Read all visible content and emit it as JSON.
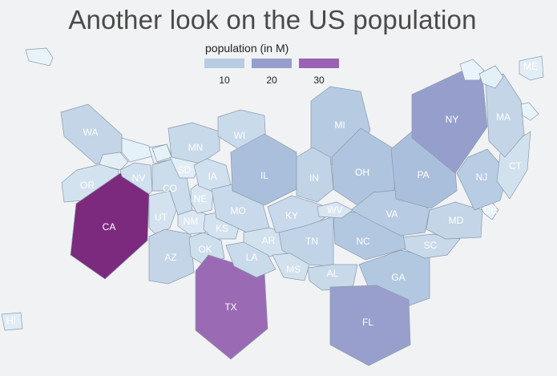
{
  "title": "Another look on the US population",
  "legend": {
    "title": "population (in M)",
    "items": [
      {
        "label": "10",
        "color": "#b7cce2"
      },
      {
        "label": "20",
        "color": "#969fcc"
      },
      {
        "label": "30",
        "color": "#9a62b3"
      }
    ]
  },
  "colors": {
    "background": "#f1f2f4",
    "border": "#8a9aab",
    "label": "#ffffff",
    "tiny_state_fill": "#e5f2f9"
  },
  "states": [
    {
      "abbr": "WA",
      "label": "WA",
      "color": "#c3d5e7"
    },
    {
      "abbr": "OR",
      "label": "OR",
      "color": "#d3e2ef"
    },
    {
      "abbr": "CA",
      "label": "CA",
      "color": "#7b2a7e"
    },
    {
      "abbr": "NV",
      "label": "NV",
      "color": "#cfe0ef"
    },
    {
      "abbr": "ID",
      "label": "",
      "color": "#e3eef7"
    },
    {
      "abbr": "MT",
      "label": "",
      "color": "#e5f1f8"
    },
    {
      "abbr": "WY",
      "label": "",
      "color": "#e8f3f9"
    },
    {
      "abbr": "UT",
      "label": "UT",
      "color": "#d4e2ef"
    },
    {
      "abbr": "AZ",
      "label": "AZ",
      "color": "#c3d5e7"
    },
    {
      "abbr": "CO",
      "label": "CO",
      "color": "#cbdcec"
    },
    {
      "abbr": "NM",
      "label": "NM",
      "color": "#dae6f2"
    },
    {
      "abbr": "SD",
      "label": "SD",
      "color": "#e2edf6"
    },
    {
      "abbr": "ND",
      "label": "",
      "color": "#e6f2f9"
    },
    {
      "abbr": "NE",
      "label": "NE",
      "color": "#d9e6f2"
    },
    {
      "abbr": "KS",
      "label": "KS",
      "color": "#d3e2ef"
    },
    {
      "abbr": "OK",
      "label": "OK",
      "color": "#cddeed"
    },
    {
      "abbr": "TX",
      "label": "TX",
      "color": "#9a6bb4"
    },
    {
      "abbr": "MN",
      "label": "MN",
      "color": "#c8d9ea"
    },
    {
      "abbr": "IA",
      "label": "IA",
      "color": "#d0e0ee"
    },
    {
      "abbr": "MO",
      "label": "MO",
      "color": "#c8d9eb"
    },
    {
      "abbr": "AR",
      "label": "AR",
      "color": "#d2e1ee"
    },
    {
      "abbr": "LA",
      "label": "LA",
      "color": "#c9daeb"
    },
    {
      "abbr": "WI",
      "label": "WI",
      "color": "#c9daeb"
    },
    {
      "abbr": "IL",
      "label": "IL",
      "color": "#a9bfdc"
    },
    {
      "abbr": "MI",
      "label": "MI",
      "color": "#b6cbe2"
    },
    {
      "abbr": "IN",
      "label": "IN",
      "color": "#c1d4e7"
    },
    {
      "abbr": "OH",
      "label": "OH",
      "color": "#afc5df"
    },
    {
      "abbr": "KY",
      "label": "KY",
      "color": "#c8d9eb"
    },
    {
      "abbr": "TN",
      "label": "TN",
      "color": "#c1d4e7"
    },
    {
      "abbr": "MS",
      "label": "MS",
      "color": "#d2e1ee"
    },
    {
      "abbr": "AL",
      "label": "AL",
      "color": "#c8d9ea"
    },
    {
      "abbr": "GA",
      "label": "GA",
      "color": "#b2c7e0"
    },
    {
      "abbr": "FL",
      "label": "FL",
      "color": "#999fcc"
    },
    {
      "abbr": "SC",
      "label": "SC",
      "color": "#c8d9ea"
    },
    {
      "abbr": "NC",
      "label": "NC",
      "color": "#b2c7e0"
    },
    {
      "abbr": "VA",
      "label": "VA",
      "color": "#b7cce3"
    },
    {
      "abbr": "WV",
      "label": "WV",
      "color": "#d9e6f2"
    },
    {
      "abbr": "MD",
      "label": "MD",
      "color": "#c3d5e7"
    },
    {
      "abbr": "DE",
      "label": "DE",
      "color": "#e8f3f9"
    },
    {
      "abbr": "NJ",
      "label": "NJ",
      "color": "#b8cce3"
    },
    {
      "abbr": "PA",
      "label": "PA",
      "color": "#a9bfdc"
    },
    {
      "abbr": "NY",
      "label": "NY",
      "color": "#969fcc"
    },
    {
      "abbr": "CT",
      "label": "CT",
      "color": "#d2e1ee"
    },
    {
      "abbr": "RI",
      "label": "",
      "color": "#e8f3f9"
    },
    {
      "abbr": "MA",
      "label": "MA",
      "color": "#c3d5e7"
    },
    {
      "abbr": "VT",
      "label": "",
      "color": "#e9f4fa"
    },
    {
      "abbr": "NH",
      "label": "",
      "color": "#e4f0f8"
    },
    {
      "abbr": "ME",
      "label": "ME",
      "color": "#e2eef7"
    },
    {
      "abbr": "AK",
      "label": "",
      "color": "#e8f3f9"
    },
    {
      "abbr": "HI",
      "label": "HI",
      "color": "#e0edf6"
    }
  ]
}
